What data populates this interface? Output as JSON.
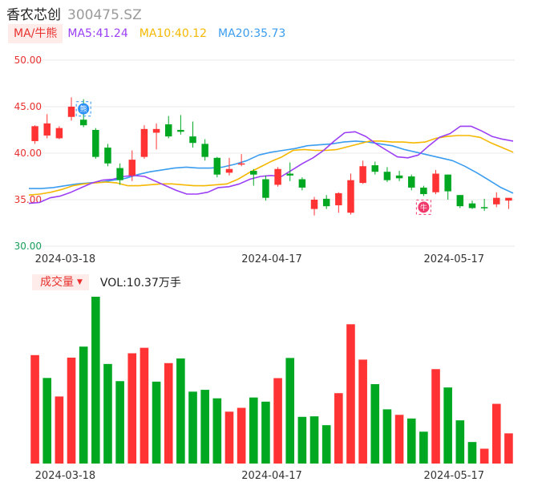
{
  "header": {
    "stock_name": "香农芯创",
    "stock_code": "300475.SZ"
  },
  "ma_legend": {
    "tag": "MA/牛熊",
    "ma5": "MA5:41.24",
    "ma10": "MA10:40.12",
    "ma20": "MA20:35.73"
  },
  "volume_legend": {
    "tag": "成交量",
    "value": "VOL:10.37万手"
  },
  "colors": {
    "up": "#ff3333",
    "down": "#00a822",
    "ma5": "#9b3ff5",
    "ma10": "#f5b800",
    "ma20": "#3b9df0",
    "price_axis": "#e8312f",
    "price_axis_low": "#1a9e5c",
    "grid": "#e8e8e8"
  },
  "chart_data": {
    "type": "candlestick",
    "price_ticks": [
      "50.00",
      "45.00",
      "40.00",
      "35.00",
      "30.00"
    ],
    "ylim": [
      30,
      50
    ],
    "x_ticks": [
      {
        "label": "2024-03-18",
        "index": 3
      },
      {
        "label": "2024-04-17",
        "index": 20
      },
      {
        "label": "2024-05-17",
        "index": 35
      }
    ],
    "markers": [
      {
        "type": "bear-marker",
        "index": 4,
        "text": "熊"
      },
      {
        "type": "bull-marker",
        "index": 32,
        "text": "牛"
      }
    ],
    "candles": [
      {
        "o": 41.3,
        "c": 42.9,
        "h": 43.0,
        "l": 41.0
      },
      {
        "o": 41.9,
        "c": 43.2,
        "h": 44.2,
        "l": 41.6
      },
      {
        "o": 41.6,
        "c": 42.7,
        "h": 42.9,
        "l": 41.5
      },
      {
        "o": 43.9,
        "c": 45.0,
        "h": 46.0,
        "l": 43.5
      },
      {
        "o": 43.6,
        "c": 43.0,
        "h": 45.8,
        "l": 42.8
      },
      {
        "o": 42.5,
        "c": 39.6,
        "h": 42.7,
        "l": 39.4
      },
      {
        "o": 40.6,
        "c": 38.9,
        "h": 41.0,
        "l": 38.6
      },
      {
        "o": 38.4,
        "c": 37.1,
        "h": 38.9,
        "l": 36.6
      },
      {
        "o": 37.6,
        "c": 39.3,
        "h": 40.3,
        "l": 37.0
      },
      {
        "o": 39.6,
        "c": 42.6,
        "h": 43.0,
        "l": 39.4
      },
      {
        "o": 42.2,
        "c": 42.6,
        "h": 43.2,
        "l": 40.4
      },
      {
        "o": 43.1,
        "c": 41.8,
        "h": 44.0,
        "l": 41.6
      },
      {
        "o": 42.5,
        "c": 42.3,
        "h": 44.1,
        "l": 42.0
      },
      {
        "o": 41.8,
        "c": 41.1,
        "h": 43.4,
        "l": 40.6
      },
      {
        "o": 41.0,
        "c": 39.6,
        "h": 41.5,
        "l": 39.2
      },
      {
        "o": 39.5,
        "c": 37.7,
        "h": 39.6,
        "l": 37.4
      },
      {
        "o": 37.9,
        "c": 38.3,
        "h": 39.5,
        "l": 37.6
      },
      {
        "o": 38.8,
        "c": 38.9,
        "h": 39.9,
        "l": 38.6
      },
      {
        "o": 38.1,
        "c": 37.7,
        "h": 38.3,
        "l": 36.5
      },
      {
        "o": 37.2,
        "c": 35.2,
        "h": 37.6,
        "l": 34.9
      },
      {
        "o": 36.6,
        "c": 38.3,
        "h": 38.5,
        "l": 36.4
      },
      {
        "o": 37.8,
        "c": 37.6,
        "h": 39.0,
        "l": 37.0
      },
      {
        "o": 37.2,
        "c": 36.3,
        "h": 37.4,
        "l": 36.0
      },
      {
        "o": 34.0,
        "c": 35.0,
        "h": 35.3,
        "l": 33.3
      },
      {
        "o": 35.1,
        "c": 34.3,
        "h": 35.5,
        "l": 34.0
      },
      {
        "o": 34.4,
        "c": 35.7,
        "h": 35.8,
        "l": 33.6
      },
      {
        "o": 33.6,
        "c": 37.1,
        "h": 37.8,
        "l": 33.4
      },
      {
        "o": 36.8,
        "c": 38.6,
        "h": 39.2,
        "l": 36.7
      },
      {
        "o": 38.7,
        "c": 38.0,
        "h": 39.1,
        "l": 37.7
      },
      {
        "o": 38.0,
        "c": 37.1,
        "h": 38.5,
        "l": 36.9
      },
      {
        "o": 37.6,
        "c": 37.3,
        "h": 38.1,
        "l": 37.0
      },
      {
        "o": 37.5,
        "c": 36.3,
        "h": 37.7,
        "l": 36.0
      },
      {
        "o": 36.3,
        "c": 35.6,
        "h": 36.5,
        "l": 35.4
      },
      {
        "o": 35.8,
        "c": 37.8,
        "h": 38.2,
        "l": 35.6
      },
      {
        "o": 37.7,
        "c": 35.9,
        "h": 37.7,
        "l": 35.0
      },
      {
        "o": 35.5,
        "c": 34.3,
        "h": 35.5,
        "l": 34.1
      },
      {
        "o": 34.6,
        "c": 34.1,
        "h": 34.9,
        "l": 34.0
      },
      {
        "o": 34.2,
        "c": 34.1,
        "h": 35.1,
        "l": 33.8
      },
      {
        "o": 34.5,
        "c": 35.2,
        "h": 35.8,
        "l": 34.2
      },
      {
        "o": 34.9,
        "c": 35.2,
        "h": 35.2,
        "l": 34.0
      }
    ],
    "ma5": [
      34.6,
      34.7,
      35.2,
      35.4,
      35.8,
      36.3,
      36.8,
      37.1,
      37.2,
      37.5,
      37.6,
      37.5,
      37.0,
      36.5,
      36.0,
      35.6,
      35.6,
      35.8,
      36.3,
      36.4,
      36.7,
      37.2,
      37.5,
      37.6,
      37.5,
      38.2,
      38.9,
      39.5,
      40.3,
      41.3,
      42.2,
      42.3,
      41.8,
      41.0,
      40.3,
      39.6,
      39.5,
      39.8,
      40.8,
      41.7,
      42.1,
      42.9,
      42.9,
      42.4,
      41.8,
      41.5,
      41.3
    ],
    "ma10": [
      35.5,
      35.6,
      35.8,
      36.1,
      36.5,
      36.7,
      36.8,
      36.9,
      36.8,
      36.5,
      36.5,
      36.6,
      36.7,
      36.7,
      36.6,
      36.5,
      36.5,
      36.6,
      36.7,
      37.2,
      37.9,
      38.5,
      39.1,
      39.6,
      40.3,
      40.4,
      40.3,
      40.3,
      40.4,
      40.7,
      41.0,
      41.3,
      41.3,
      41.2,
      41.2,
      41.1,
      41.2,
      41.6,
      41.8,
      41.9,
      41.9,
      41.7,
      41.1,
      40.6,
      40.1
    ],
    "ma20": [
      36.2,
      36.2,
      36.3,
      36.5,
      36.7,
      36.8,
      36.9,
      37.1,
      37.3,
      37.7,
      38.0,
      38.2,
      38.4,
      38.5,
      38.4,
      38.4,
      38.5,
      38.8,
      39.2,
      39.8,
      40.1,
      40.3,
      40.5,
      40.8,
      40.9,
      41.0,
      41.2,
      41.3,
      41.2,
      41.0,
      40.8,
      40.4,
      40.1,
      39.8,
      39.5,
      39.2,
      38.6,
      37.9,
      37.1,
      36.3,
      35.7
    ],
    "volume_max": 100,
    "volumes": [
      {
        "v": 65.0,
        "up": true
      },
      {
        "v": 51.3,
        "up": false
      },
      {
        "v": 40.2,
        "up": true
      },
      {
        "v": 63.5,
        "up": true
      },
      {
        "v": 70.1,
        "up": false
      },
      {
        "v": 100.0,
        "up": false
      },
      {
        "v": 59.7,
        "up": false
      },
      {
        "v": 49.4,
        "up": false
      },
      {
        "v": 66.1,
        "up": true
      },
      {
        "v": 69.4,
        "up": true
      },
      {
        "v": 49.1,
        "up": false
      },
      {
        "v": 60.2,
        "up": true
      },
      {
        "v": 63.0,
        "up": false
      },
      {
        "v": 43.1,
        "up": false
      },
      {
        "v": 44.2,
        "up": false
      },
      {
        "v": 39.1,
        "up": false
      },
      {
        "v": 31.1,
        "up": true
      },
      {
        "v": 33.4,
        "up": true
      },
      {
        "v": 39.6,
        "up": false
      },
      {
        "v": 37.1,
        "up": false
      },
      {
        "v": 51.2,
        "up": true
      },
      {
        "v": 63.3,
        "up": false
      },
      {
        "v": 28.0,
        "up": false
      },
      {
        "v": 28.3,
        "up": false
      },
      {
        "v": 23.0,
        "up": false
      },
      {
        "v": 42.2,
        "up": true
      },
      {
        "v": 83.5,
        "up": true
      },
      {
        "v": 62.3,
        "up": true
      },
      {
        "v": 47.6,
        "up": false
      },
      {
        "v": 32.5,
        "up": false
      },
      {
        "v": 29.2,
        "up": true
      },
      {
        "v": 27.0,
        "up": false
      },
      {
        "v": 19.1,
        "up": false
      },
      {
        "v": 56.6,
        "up": true
      },
      {
        "v": 45.6,
        "up": false
      },
      {
        "v": 25.9,
        "up": false
      },
      {
        "v": 12.9,
        "up": false
      },
      {
        "v": 8.9,
        "up": true
      },
      {
        "v": 35.8,
        "up": true
      },
      {
        "v": 18.1,
        "up": true
      }
    ]
  }
}
